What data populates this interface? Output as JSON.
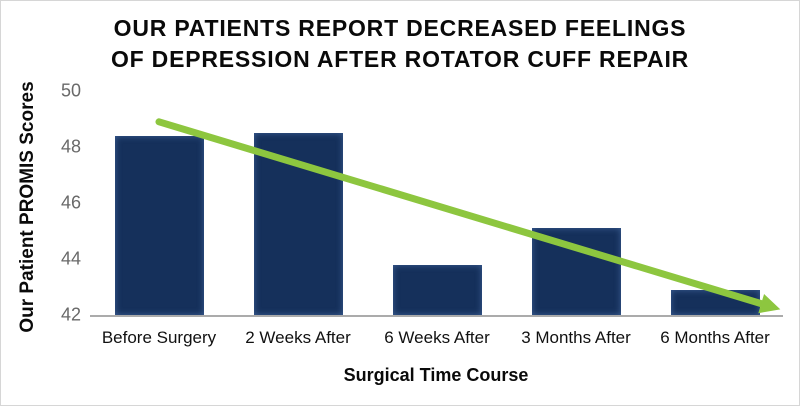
{
  "page": {
    "background": "#ffffff",
    "border_color": "#d6d6d6"
  },
  "chart": {
    "title_line1": "OUR PATIENTS REPORT DECREASED FEELINGS",
    "title_line2": "OF DEPRESSION AFTER ROTATOR CUFF REPAIR",
    "y_axis_title": "Our Patient PROMIS Scores",
    "x_axis_title": "Surgical Time Course"
  },
  "chart_data": {
    "type": "bar",
    "title": "OUR PATIENTS REPORT DECREASED FEELINGS OF DEPRESSION AFTER ROTATOR CUFF REPAIR",
    "xlabel": "Surgical Time Course",
    "ylabel": "Our Patient PROMIS Scores",
    "categories": [
      "Before Surgery",
      "2 Weeks After",
      "6 Weeks After",
      "3 Months After",
      "6 Months After"
    ],
    "values": [
      48.4,
      48.5,
      43.8,
      45.1,
      42.9
    ],
    "ylim": [
      42,
      50
    ],
    "yticks": [
      42,
      44,
      46,
      48,
      50
    ],
    "grid": false,
    "legend": false,
    "bar_color": "#15305b",
    "axis_line_color": "#ababab",
    "tick_label_color": "#696969",
    "trend_arrow": {
      "color": "#8dc63f",
      "start": {
        "category_pos": 0,
        "value": 48.9
      },
      "end": {
        "category_pos": 4.47,
        "value": 42.2
      }
    }
  }
}
